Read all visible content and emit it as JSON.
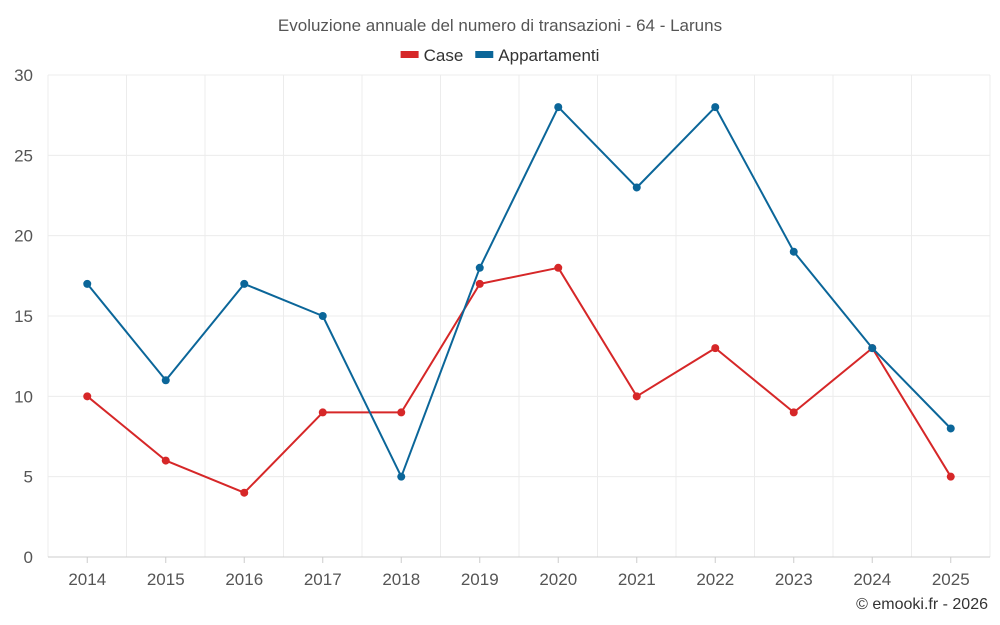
{
  "chart_data": {
    "type": "line",
    "title": "Evoluzione annuale del numero di transazioni - 64 - Laruns",
    "categories": [
      "2014",
      "2015",
      "2016",
      "2017",
      "2018",
      "2019",
      "2020",
      "2021",
      "2022",
      "2023",
      "2024",
      "2025"
    ],
    "series": [
      {
        "name": "Case",
        "color": "#d62728",
        "values": [
          10,
          6,
          4,
          9,
          9,
          17,
          18,
          10,
          13,
          9,
          13,
          5
        ]
      },
      {
        "name": "Appartamenti",
        "color": "#0b6699",
        "values": [
          17,
          11,
          17,
          15,
          5,
          18,
          28,
          23,
          28,
          19,
          13,
          8
        ]
      }
    ],
    "ylim": [
      0,
      30
    ],
    "yticks": [
      0,
      5,
      10,
      15,
      20,
      25,
      30
    ],
    "yticklabels": [
      "0",
      "5",
      "10",
      "15",
      "20",
      "25",
      "30"
    ],
    "grid": true,
    "legend": "top-center",
    "xlabel": "",
    "ylabel": ""
  },
  "credit": "© emooki.fr - 2026"
}
